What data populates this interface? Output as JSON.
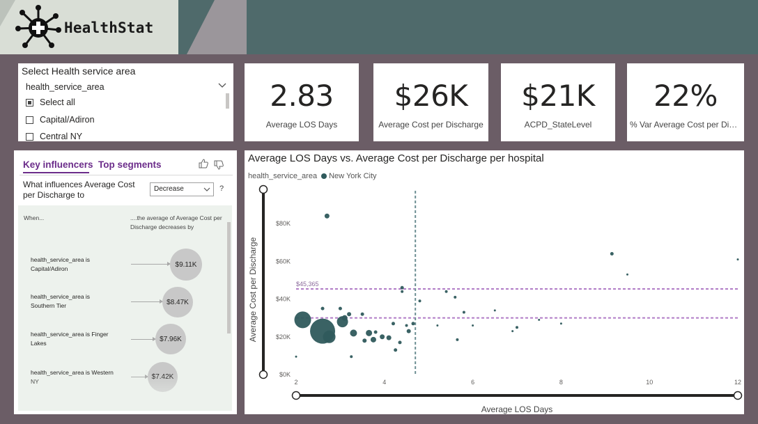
{
  "header": {
    "app_title": "HealthStat",
    "logo_icon": "medical-cross-molecule-icon"
  },
  "slicer": {
    "title": "Select Health service area",
    "field": "health_service_area",
    "options": [
      {
        "label": "Select all",
        "checked": true
      },
      {
        "label": "Capital/Adiron",
        "checked": false
      },
      {
        "label": "Central NY",
        "checked": false
      }
    ]
  },
  "kpis": [
    {
      "value": "2.83",
      "label": "Average LOS Days"
    },
    {
      "value": "$26K",
      "label": "Average Cost per Discharge"
    },
    {
      "value": "$21K",
      "label": "ACPD_StateLevel"
    },
    {
      "value": "22%",
      "label": "% Var Average Cost per Discharge"
    }
  ],
  "key_influencers": {
    "tabs": [
      "Key influencers",
      "Top segments"
    ],
    "question": "What influences Average Cost per Discharge to",
    "dropdown_value": "Decrease",
    "help": "?",
    "col_when": "When...",
    "col_result": "....the average of Average Cost per Discharge decreases by",
    "rows": [
      {
        "condition": "health_service_area is Capital/Adiron",
        "value": "$9.11K"
      },
      {
        "condition": "health_service_area is Southern Tier",
        "value": "$8.47K"
      },
      {
        "condition": "health_service_area is Finger Lakes",
        "value": "$7.96K"
      },
      {
        "condition": "health_service_area is Western NY",
        "value": "$7.42K"
      }
    ]
  },
  "chart_data": {
    "type": "scatter",
    "title": "Average LOS Days vs. Average Cost per Discharge per hospital",
    "legend_title": "health_service_area",
    "series": [
      {
        "name": "New York City",
        "color": "#2f5a5c",
        "points": [
          {
            "x": 2.6,
            "y": 23000,
            "size": 18
          },
          {
            "x": 2.15,
            "y": 29000,
            "size": 12
          },
          {
            "x": 2.75,
            "y": 20000,
            "size": 9
          },
          {
            "x": 3.05,
            "y": 28000,
            "size": 8
          },
          {
            "x": 3.3,
            "y": 22000,
            "size": 5
          },
          {
            "x": 3.65,
            "y": 22000,
            "size": 4.5
          },
          {
            "x": 3.1,
            "y": 30000,
            "size": 4
          },
          {
            "x": 3.75,
            "y": 18500,
            "size": 4
          },
          {
            "x": 3.95,
            "y": 20000,
            "size": 3.5
          },
          {
            "x": 4.1,
            "y": 19500,
            "size": 3.5
          },
          {
            "x": 3.55,
            "y": 18000,
            "size": 3
          },
          {
            "x": 3.2,
            "y": 32000,
            "size": 3
          },
          {
            "x": 4.55,
            "y": 23000,
            "size": 3
          },
          {
            "x": 4.35,
            "y": 17000,
            "size": 2.5
          },
          {
            "x": 4.25,
            "y": 13000,
            "size": 2.5
          },
          {
            "x": 4.65,
            "y": 27000,
            "size": 2.5
          },
          {
            "x": 4.2,
            "y": 27000,
            "size": 2.5
          },
          {
            "x": 3.8,
            "y": 22500,
            "size": 2.5
          },
          {
            "x": 2.7,
            "y": 84000,
            "size": 3.5
          },
          {
            "x": 2.6,
            "y": 35000,
            "size": 2.5
          },
          {
            "x": 3.0,
            "y": 35000,
            "size": 2.5
          },
          {
            "x": 3.5,
            "y": 32000,
            "size": 2.5
          },
          {
            "x": 4.4,
            "y": 46000,
            "size": 2.5
          },
          {
            "x": 4.4,
            "y": 44000,
            "size": 2
          },
          {
            "x": 4.8,
            "y": 39000,
            "size": 2
          },
          {
            "x": 4.5,
            "y": 26000,
            "size": 2
          },
          {
            "x": 3.25,
            "y": 9500,
            "size": 2
          },
          {
            "x": 5.4,
            "y": 44000,
            "size": 2
          },
          {
            "x": 5.6,
            "y": 41000,
            "size": 2
          },
          {
            "x": 5.8,
            "y": 33000,
            "size": 2
          },
          {
            "x": 5.65,
            "y": 18500,
            "size": 2
          },
          {
            "x": 6.0,
            "y": 26000,
            "size": 1.5
          },
          {
            "x": 6.5,
            "y": 34000,
            "size": 1.5
          },
          {
            "x": 7.0,
            "y": 25000,
            "size": 2
          },
          {
            "x": 6.9,
            "y": 23000,
            "size": 1.5
          },
          {
            "x": 7.5,
            "y": 29000,
            "size": 1.5
          },
          {
            "x": 8.0,
            "y": 27000,
            "size": 1.5
          },
          {
            "x": 9.15,
            "y": 64000,
            "size": 2.5
          },
          {
            "x": 9.5,
            "y": 53000,
            "size": 1.5
          },
          {
            "x": 12.0,
            "y": 61000,
            "size": 1.5
          },
          {
            "x": 5.2,
            "y": 26000,
            "size": 1.5
          },
          {
            "x": 2.0,
            "y": 9500,
            "size": 1.5
          }
        ]
      }
    ],
    "reference_lines": [
      {
        "axis": "y",
        "value": 45365,
        "label": "$45,365",
        "style": "dashed",
        "color": "#b07cc6"
      },
      {
        "axis": "y",
        "value": 30000,
        "style": "dashed",
        "color": "#b07cc6"
      },
      {
        "axis": "x",
        "value": 4.7,
        "style": "dashed",
        "color": "#6d8f93"
      }
    ],
    "xlabel": "Average LOS Days",
    "ylabel": "Average Cost per Discharge",
    "xlim": [
      2,
      12
    ],
    "ylim": [
      0,
      90000
    ],
    "xticks": [
      {
        "value": 2,
        "label": "2"
      },
      {
        "value": 4,
        "label": "4"
      },
      {
        "value": 6,
        "label": "6"
      },
      {
        "value": 8,
        "label": "8"
      },
      {
        "value": 10,
        "label": "10"
      },
      {
        "value": 12,
        "label": "12"
      }
    ],
    "yticks": [
      {
        "value": 0,
        "label": "$0K"
      },
      {
        "value": 20000,
        "label": "$20K"
      },
      {
        "value": 40000,
        "label": "$40K"
      },
      {
        "value": 60000,
        "label": "$60K"
      },
      {
        "value": 80000,
        "label": "$80K"
      }
    ],
    "grid": false
  }
}
